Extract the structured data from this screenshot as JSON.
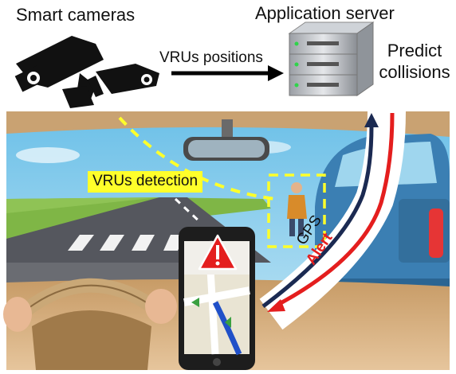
{
  "labels": {
    "cameras": "Smart cameras",
    "server": "Application server",
    "vru_positions": "VRUs positions",
    "predict": "Predict collisions",
    "vru_detection": "VRUs detection",
    "gps": "GPS",
    "alert": "Alert"
  },
  "colors": {
    "sky": "#8fd0ee",
    "road": "#55575e",
    "grass": "#7fb646",
    "dashboard": "#d9b489",
    "car": "#3b7fb3",
    "alert_red": "#e41e1e",
    "gps_navy": "#1b2a52",
    "detection_yellow": "#ffff2a"
  },
  "icons": [
    "security-camera-icon",
    "server-rack-icon",
    "phone-navigation-icon",
    "warning-triangle-icon",
    "pedestrian-icon"
  ]
}
